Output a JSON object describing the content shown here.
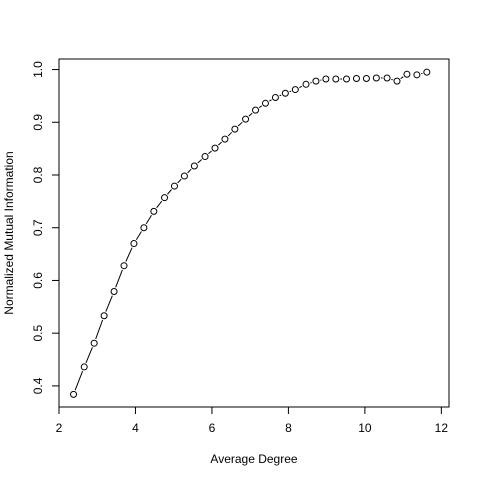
{
  "chart_data": {
    "type": "scatter",
    "title": "",
    "xlabel": "Average Degree",
    "ylabel": "Normalized Mutual Information",
    "xlim": [
      2.0,
      12.2
    ],
    "ylim": [
      0.36,
      1.02
    ],
    "x_ticks": [
      2,
      4,
      6,
      8,
      10,
      12
    ],
    "x_tick_labels": [
      "2",
      "4",
      "6",
      "8",
      "10",
      "12"
    ],
    "y_ticks": [
      0.4,
      0.5,
      0.6,
      0.7,
      0.8,
      0.9,
      1.0
    ],
    "y_tick_labels": [
      "0.4",
      "0.5",
      "0.6",
      "0.7",
      "0.8",
      "0.9",
      "1.0"
    ],
    "grid": false,
    "legend": "none",
    "series": [
      {
        "style": "points with connecting line segments",
        "x": [
          2.38,
          2.66,
          2.92,
          3.18,
          3.44,
          3.7,
          3.96,
          4.22,
          4.48,
          4.76,
          5.02,
          5.28,
          5.54,
          5.82,
          6.08,
          6.34,
          6.6,
          6.88,
          7.14,
          7.4,
          7.66,
          7.92,
          8.18,
          8.46,
          8.72,
          8.98,
          9.24,
          9.52,
          9.78,
          10.04,
          10.3,
          10.58,
          10.84,
          11.1,
          11.36,
          11.62
        ],
        "y": [
          0.384,
          0.436,
          0.481,
          0.533,
          0.579,
          0.628,
          0.67,
          0.7,
          0.731,
          0.757,
          0.779,
          0.798,
          0.817,
          0.835,
          0.851,
          0.868,
          0.887,
          0.906,
          0.923,
          0.936,
          0.947,
          0.955,
          0.962,
          0.972,
          0.978,
          0.982,
          0.982,
          0.982,
          0.983,
          0.983,
          0.984,
          0.984,
          0.978,
          0.991,
          0.99,
          0.995
        ]
      }
    ]
  }
}
